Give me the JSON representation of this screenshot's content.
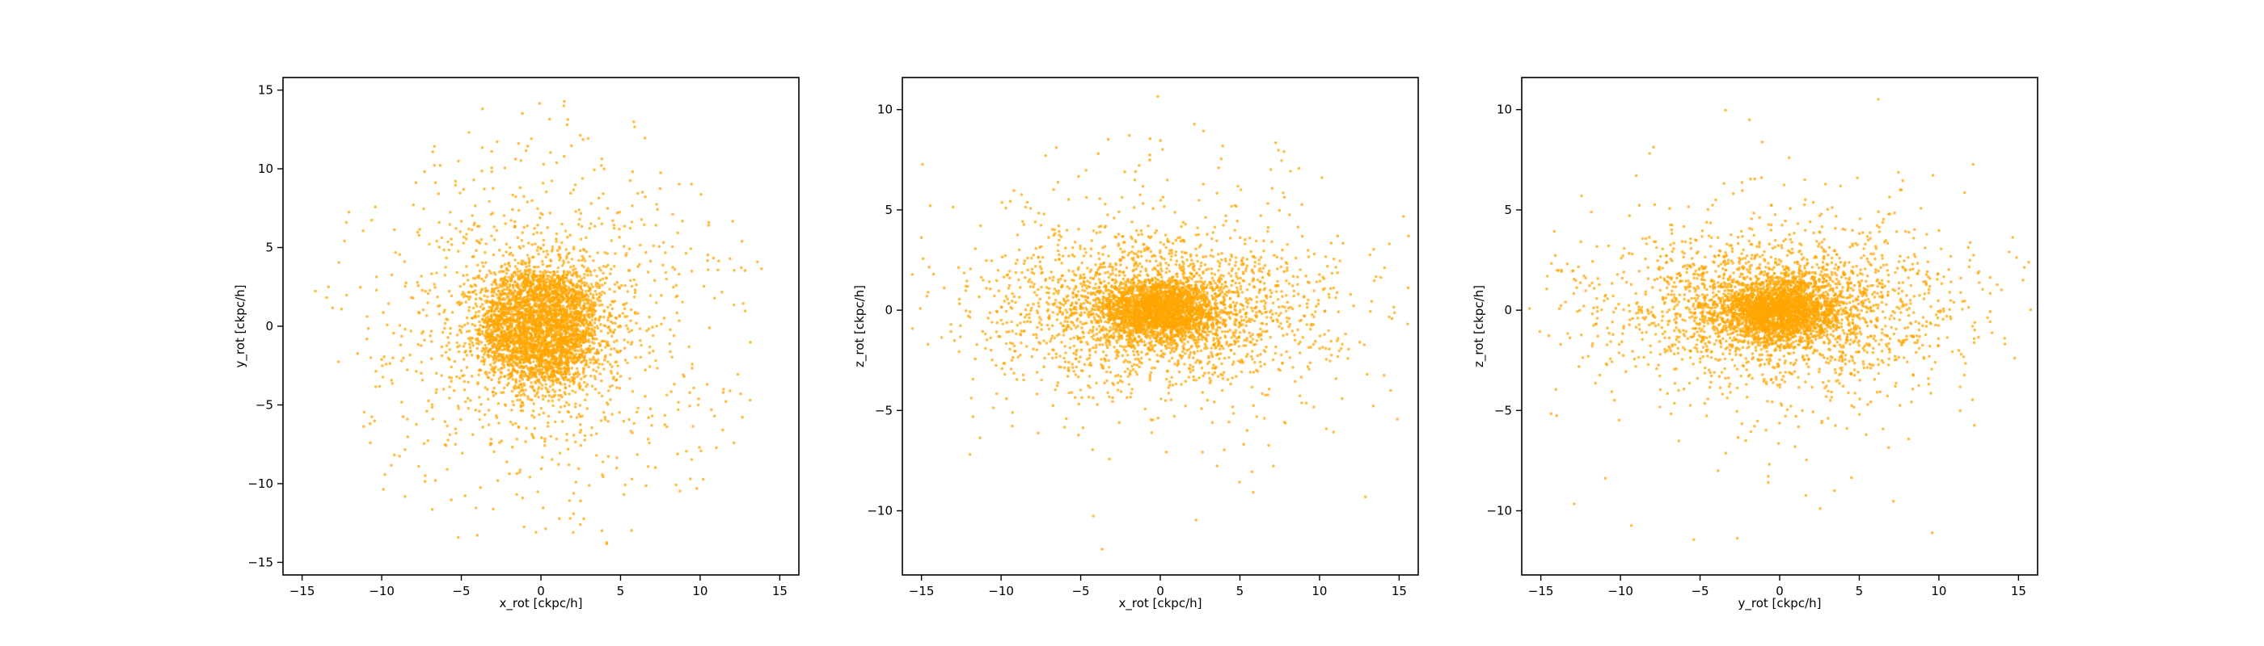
{
  "figure": {
    "background": "#ffffff",
    "point_color": "#ffa500",
    "point_alpha": 0.7
  },
  "chart_data": [
    {
      "type": "scatter",
      "xlabel": "x_rot [ckpc/h]",
      "ylabel": "y_rot [ckpc/h]",
      "xlim": [
        -16.2,
        16.2
      ],
      "ylim": [
        -15.8,
        15.8
      ],
      "xticks": [
        -15,
        -10,
        -5,
        0,
        5,
        10,
        15
      ],
      "yticks": [
        -15,
        -10,
        -5,
        0,
        5,
        10,
        15
      ],
      "grid": false,
      "distribution": {
        "n_points": 4500,
        "components": [
          {
            "fraction": 0.55,
            "kind": "gaussian",
            "sx": 1.9,
            "sy": 1.9,
            "cx": 0,
            "cy": 0
          },
          {
            "fraction": 0.45,
            "kind": "disk",
            "radius": 14.5,
            "scale": 6.0
          }
        ]
      }
    },
    {
      "type": "scatter",
      "xlabel": "x_rot [ckpc/h]",
      "ylabel": "z_rot [ckpc/h]",
      "xlim": [
        -16.2,
        16.2
      ],
      "ylim": [
        -13.2,
        11.6
      ],
      "xticks": [
        -15,
        -10,
        -5,
        0,
        5,
        10,
        15
      ],
      "yticks": [
        -10,
        -5,
        0,
        5,
        10
      ],
      "grid": false,
      "distribution": {
        "n_points": 4500,
        "components": [
          {
            "fraction": 0.5,
            "kind": "gaussian",
            "sx": 1.9,
            "sy": 0.8,
            "cx": 0,
            "cy": 0
          },
          {
            "fraction": 0.42,
            "kind": "gaussian",
            "sx": 5.5,
            "sy": 1.9,
            "cx": 0,
            "cy": 0
          },
          {
            "fraction": 0.08,
            "kind": "gaussian",
            "sx": 6.5,
            "sy": 4.2,
            "cx": 0,
            "cy": 0
          }
        ]
      }
    },
    {
      "type": "scatter",
      "xlabel": "y_rot [ckpc/h]",
      "ylabel": "z_rot [ckpc/h]",
      "xlim": [
        -16.2,
        16.2
      ],
      "ylim": [
        -13.2,
        11.6
      ],
      "xticks": [
        -15,
        -10,
        -5,
        0,
        5,
        10,
        15
      ],
      "yticks": [
        -10,
        -5,
        0,
        5,
        10
      ],
      "grid": false,
      "distribution": {
        "n_points": 4500,
        "components": [
          {
            "fraction": 0.5,
            "kind": "gaussian",
            "sx": 1.9,
            "sy": 0.8,
            "cx": 0,
            "cy": 0
          },
          {
            "fraction": 0.42,
            "kind": "gaussian",
            "sx": 5.5,
            "sy": 1.9,
            "cx": 0,
            "cy": 0
          },
          {
            "fraction": 0.08,
            "kind": "gaussian",
            "sx": 6.5,
            "sy": 4.2,
            "cx": 0,
            "cy": 0
          }
        ]
      }
    }
  ]
}
